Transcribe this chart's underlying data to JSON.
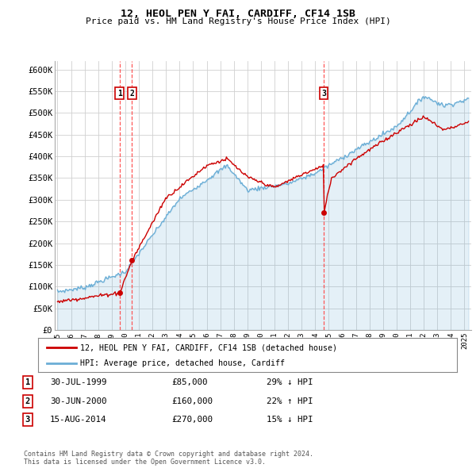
{
  "title": "12, HEOL PEN Y FAI, CARDIFF, CF14 1SB",
  "subtitle": "Price paid vs. HM Land Registry's House Price Index (HPI)",
  "ylabel_ticks": [
    "£0",
    "£50K",
    "£100K",
    "£150K",
    "£200K",
    "£250K",
    "£300K",
    "£350K",
    "£400K",
    "£450K",
    "£500K",
    "£550K",
    "£600K"
  ],
  "ytick_values": [
    0,
    50000,
    100000,
    150000,
    200000,
    250000,
    300000,
    350000,
    400000,
    450000,
    500000,
    550000,
    600000
  ],
  "xmin": 1994.8,
  "xmax": 2025.5,
  "ymin": 0,
  "ymax": 620000,
  "hpi_color": "#6baed6",
  "hpi_fill_color": "#ddeeff",
  "price_color": "#cc0000",
  "dashed_color": "#ff4444",
  "transactions": [
    {
      "num": 1,
      "date_x": 1999.58,
      "price": 85000,
      "label": "30-JUL-1999",
      "amount": "£85,000",
      "pct": "29% ↓ HPI"
    },
    {
      "num": 2,
      "date_x": 2000.5,
      "price": 160000,
      "label": "30-JUN-2000",
      "amount": "£160,000",
      "pct": "22% ↑ HPI"
    },
    {
      "num": 3,
      "date_x": 2014.62,
      "price": 270000,
      "label": "15-AUG-2014",
      "amount": "£270,000",
      "pct": "15% ↓ HPI"
    }
  ],
  "legend_line1": "12, HEOL PEN Y FAI, CARDIFF, CF14 1SB (detached house)",
  "legend_line2": "HPI: Average price, detached house, Cardiff",
  "footnote": "Contains HM Land Registry data © Crown copyright and database right 2024.\nThis data is licensed under the Open Government Licence v3.0.",
  "background_color": "#ffffff",
  "grid_color": "#d0d0d0"
}
